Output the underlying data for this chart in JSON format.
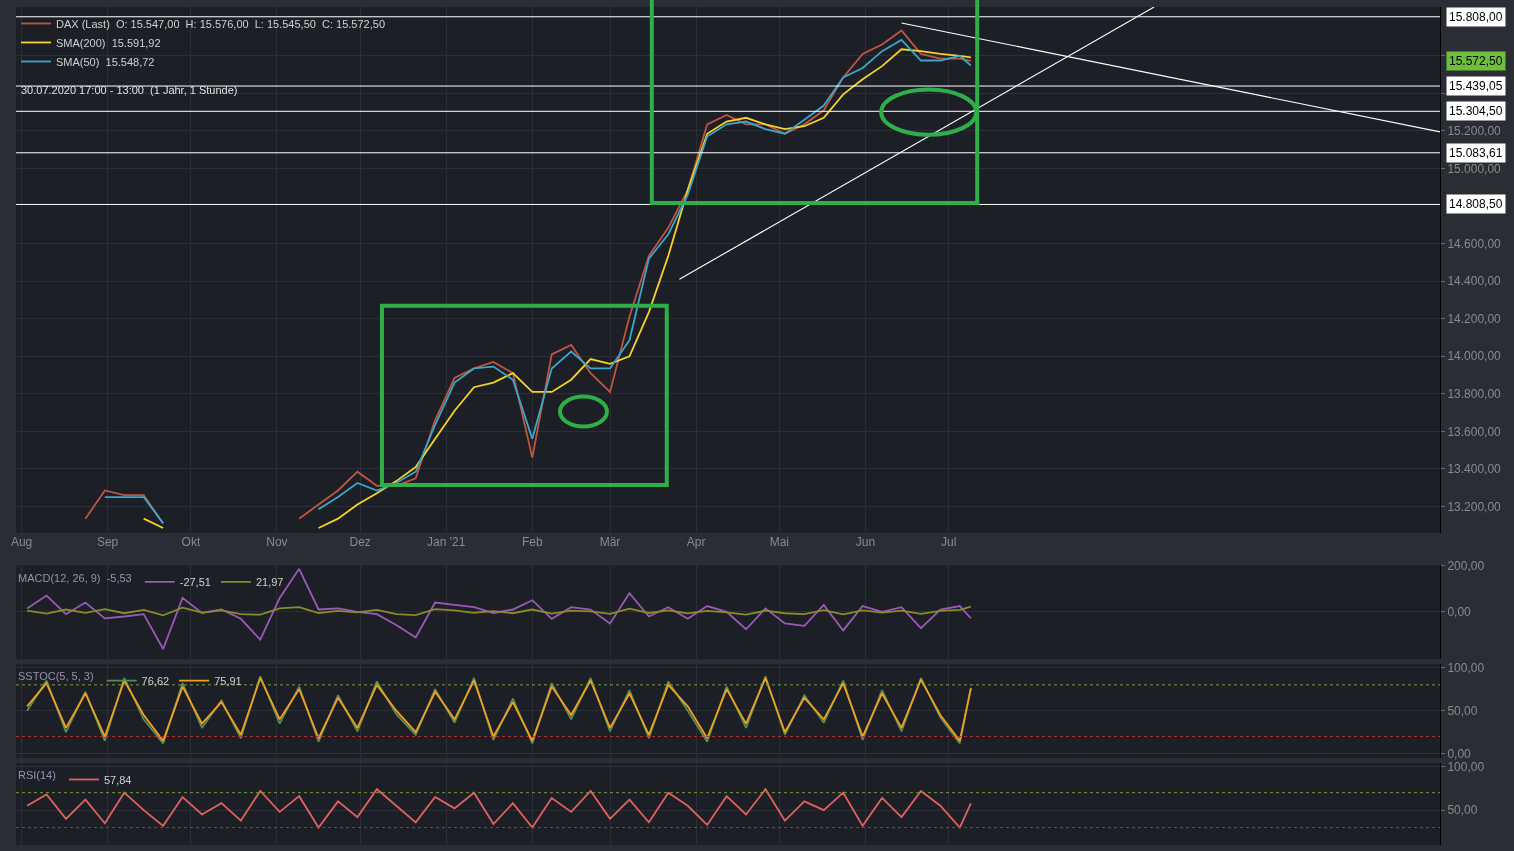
{
  "chart_data": [
    {
      "type": "line",
      "subtitle": "30.07.2020 17:00 - 13:00  (1 Jahr, 1 Stunde)",
      "x": [
        "2020-08-24",
        "2020-08-31",
        "2020-09-07",
        "2020-09-14",
        "2020-09-21",
        "2020-09-28",
        "2020-10-05",
        "2020-10-12",
        "2020-10-19",
        "2020-10-26",
        "2020-11-02",
        "2020-11-09",
        "2020-11-16",
        "2020-11-23",
        "2020-11-30",
        "2020-12-07",
        "2020-12-14",
        "2020-12-21",
        "2020-12-28",
        "2021-01-04",
        "2021-01-11",
        "2021-01-18",
        "2021-01-25",
        "2021-02-01",
        "2021-02-08",
        "2021-02-15",
        "2021-02-22",
        "2021-03-01",
        "2021-03-08",
        "2021-03-15",
        "2021-03-22",
        "2021-03-29",
        "2021-04-05",
        "2021-04-12",
        "2021-04-19",
        "2021-04-26",
        "2021-05-03",
        "2021-05-10",
        "2021-05-17",
        "2021-05-24",
        "2021-05-31",
        "2021-06-07",
        "2021-06-14",
        "2021-06-21",
        "2021-06-28",
        "2021-07-05",
        "2021-07-09"
      ],
      "series": [
        {
          "name": "DAX (Last)  O: 15.547,00  H: 15.576,00  L: 15.545,50  C: 15.572,50",
          "color": "#c0553f",
          "values": [
            13135,
            13285,
            13260,
            13260,
            13110,
            null,
            null,
            null,
            null,
            null,
            null,
            13135,
            13210,
            13285,
            13385,
            13310,
            13310,
            13350,
            13660,
            13885,
            13935,
            13970,
            13910,
            13460,
            14010,
            14060,
            13910,
            13810,
            14210,
            14535,
            14685,
            14885,
            15235,
            15285,
            15235,
            15235,
            15185,
            15235,
            15310,
            15485,
            15610,
            15660,
            15735,
            15610,
            15585,
            15585,
            15572.5
          ]
        },
        {
          "name": "SMA(200)  15.591,92",
          "color": "#f5d327",
          "values": [
            null,
            null,
            null,
            13135,
            13085,
            null,
            null,
            null,
            null,
            null,
            null,
            null,
            13085,
            13135,
            13210,
            13270,
            13335,
            13410,
            13560,
            13710,
            13835,
            13860,
            13910,
            13810,
            13810,
            13875,
            13985,
            13960,
            14000,
            14235,
            14535,
            14885,
            15185,
            15250,
            15270,
            15235,
            15210,
            15225,
            15270,
            15395,
            15475,
            15545,
            15635,
            15625,
            15610,
            15600,
            15591.92
          ]
        },
        {
          "name": "SMA(50)  15.548,72",
          "color": "#3aa6c9",
          "values": [
            null,
            13250,
            13250,
            13250,
            13110,
            null,
            null,
            null,
            null,
            null,
            null,
            null,
            13185,
            13250,
            13325,
            13285,
            13325,
            13385,
            13635,
            13860,
            13935,
            13945,
            13875,
            13560,
            13935,
            14025,
            13935,
            13935,
            14085,
            14520,
            14650,
            14860,
            15170,
            15235,
            15250,
            15210,
            15185,
            15260,
            15335,
            15485,
            15535,
            15625,
            15685,
            15575,
            15575,
            15600,
            15548.72
          ]
        },
        {
          "color": "#ffffff",
          "x": [
            "2021-03-26",
            "2021-09-13"
          ],
          "values": [
            14410,
            15860
          ]
        },
        {
          "color": "#ffffff",
          "x": [
            "2021-06-14",
            "2021-12-25"
          ],
          "values": [
            15775,
            15195
          ]
        }
      ],
      "ref_lines": [
        {
          "axis": "y",
          "value": 15808,
          "label": "15.808,00",
          "color": "#ffffff"
        },
        {
          "axis": "y",
          "value": 15439.05,
          "label": "15.439,05",
          "color": "#ffffff"
        },
        {
          "axis": "y",
          "value": 15304.5,
          "label": "15.304,50",
          "color": "#ffffff"
        },
        {
          "axis": "y",
          "value": 15083.61,
          "label": "15.083,61",
          "color": "#ffffff"
        },
        {
          "axis": "y",
          "value": 14808.5,
          "label": "14.808,50",
          "color": "#ffffff"
        }
      ],
      "annotations": [
        "15.572,50"
      ],
      "xlim": [
        "2020-07-30",
        "2021-12-25"
      ],
      "xticks": [
        {
          "value": "2020-08-01",
          "label": "Aug"
        },
        {
          "value": "2020-09-01",
          "label": "Sep"
        },
        {
          "value": "2020-10-01",
          "label": "Okt"
        },
        {
          "value": "2020-11-01",
          "label": "Nov"
        },
        {
          "value": "2020-12-01",
          "label": "Dez"
        },
        {
          "value": "2021-01-01",
          "label": "Jan '21"
        },
        {
          "value": "2021-02-01",
          "label": "Feb"
        },
        {
          "value": "2021-03-01",
          "label": "Mär"
        },
        {
          "value": "2021-04-01",
          "label": "Apr"
        },
        {
          "value": "2021-05-01",
          "label": "Mai"
        },
        {
          "value": "2021-06-01",
          "label": "Jun"
        },
        {
          "value": "2021-07-01",
          "label": "Jul"
        }
      ],
      "ylim": [
        13060,
        15860
      ],
      "yticks": [
        {
          "value": 13200,
          "label": "13.200,00"
        },
        {
          "value": 13400,
          "label": "13.400,00"
        },
        {
          "value": 13600,
          "label": "13.600,00"
        },
        {
          "value": 13800,
          "label": "13.800,00"
        },
        {
          "value": 14000,
          "label": "14.000,00"
        },
        {
          "value": 14200,
          "label": "14.200,00"
        },
        {
          "value": 14400,
          "label": "14.400,00"
        },
        {
          "value": 14600,
          "label": "14.600,00"
        },
        {
          "value": 15000,
          "label": "15.000,00"
        },
        {
          "value": 15200,
          "label": "15.200,00"
        },
        {
          "value": 15400,
          "label": null
        },
        {
          "value": 15600,
          "label": null
        }
      ],
      "grid": true,
      "legend": "top left"
    },
    {
      "type": "line",
      "legend_title": "MACD(12, 26, 9)  -5,53",
      "x": [
        "2020-08-03",
        "2020-08-10",
        "2020-08-17",
        "2020-08-24",
        "2020-08-31",
        "2020-09-07",
        "2020-09-14",
        "2020-09-21",
        "2020-09-28",
        "2020-10-05",
        "2020-10-12",
        "2020-10-19",
        "2020-10-26",
        "2020-11-02",
        "2020-11-09",
        "2020-11-16",
        "2020-11-23",
        "2020-11-30",
        "2020-12-07",
        "2020-12-14",
        "2020-12-21",
        "2020-12-28",
        "2021-01-04",
        "2021-01-11",
        "2021-01-18",
        "2021-01-25",
        "2021-02-01",
        "2021-02-08",
        "2021-02-15",
        "2021-02-22",
        "2021-03-01",
        "2021-03-08",
        "2021-03-15",
        "2021-03-22",
        "2021-03-29",
        "2021-04-05",
        "2021-04-12",
        "2021-04-19",
        "2021-04-26",
        "2021-05-03",
        "2021-05-10",
        "2021-05-17",
        "2021-05-24",
        "2021-05-31",
        "2021-06-07",
        "2021-06-14",
        "2021-06-21",
        "2021-06-28",
        "2021-07-05",
        "2021-07-09"
      ],
      "series": [
        {
          "name": "-27,51",
          "color": "#9b59b6",
          "values": [
            14,
            70,
            -10,
            40,
            -28,
            -20,
            -10,
            -160,
            60,
            -5,
            10,
            -30,
            -120,
            60,
            185,
            10,
            15,
            0,
            -10,
            -57,
            -110,
            40,
            30,
            20,
            -5,
            10,
            50,
            -30,
            20,
            10,
            -50,
            80,
            -20,
            20,
            -30,
            25,
            0,
            -75,
            15,
            -50,
            -60,
            30,
            -80,
            25,
            0,
            20,
            -70,
            10,
            25,
            -27.51
          ]
        },
        {
          "name": "21,97",
          "color": "#8a8a2a",
          "values": [
            5,
            -8,
            10,
            -4,
            12,
            -6,
            8,
            -15,
            18,
            -3,
            6,
            -10,
            -12,
            15,
            20,
            -5,
            4,
            -2,
            8,
            -10,
            -14,
            12,
            6,
            -4,
            3,
            -6,
            10,
            -8,
            5,
            2,
            -9,
            14,
            -5,
            6,
            -7,
            4,
            -2,
            -12,
            5,
            -6,
            -10,
            7,
            -11,
            6,
            -3,
            5,
            -9,
            4,
            8,
            21.97
          ]
        }
      ],
      "xlim": [
        "2020-07-30",
        "2021-12-25"
      ],
      "xticks": [
        {
          "value": "2020-08-01",
          "label": null
        },
        {
          "value": "2020-09-01",
          "label": null
        },
        {
          "value": "2020-10-01",
          "label": null
        },
        {
          "value": "2020-11-01",
          "label": null
        },
        {
          "value": "2020-12-01",
          "label": null
        },
        {
          "value": "2021-01-01",
          "label": null
        },
        {
          "value": "2021-02-01",
          "label": null
        },
        {
          "value": "2021-03-01",
          "label": null
        },
        {
          "value": "2021-04-01",
          "label": null
        },
        {
          "value": "2021-05-01",
          "label": null
        },
        {
          "value": "2021-06-01",
          "label": null
        },
        {
          "value": "2021-07-01",
          "label": null
        }
      ],
      "ylim": [
        -204,
        200
      ],
      "yticks": [
        {
          "value": 0,
          "label": "0,00"
        },
        {
          "value": 200,
          "label": "200,00"
        }
      ],
      "tick_labels": "y",
      "grid": true,
      "legend": "top left"
    },
    {
      "type": "line",
      "legend_title": "SSTOC(5, 5, 3)",
      "x": [
        "2020-08-03",
        "2020-08-10",
        "2020-08-17",
        "2020-08-24",
        "2020-08-31",
        "2020-09-07",
        "2020-09-14",
        "2020-09-21",
        "2020-09-28",
        "2020-10-05",
        "2020-10-12",
        "2020-10-19",
        "2020-10-26",
        "2020-11-02",
        "2020-11-09",
        "2020-11-16",
        "2020-11-23",
        "2020-11-30",
        "2020-12-07",
        "2020-12-14",
        "2020-12-21",
        "2020-12-28",
        "2021-01-04",
        "2021-01-11",
        "2021-01-18",
        "2021-01-25",
        "2021-02-01",
        "2021-02-08",
        "2021-02-15",
        "2021-02-22",
        "2021-03-01",
        "2021-03-08",
        "2021-03-15",
        "2021-03-22",
        "2021-03-29",
        "2021-04-05",
        "2021-04-12",
        "2021-04-19",
        "2021-04-26",
        "2021-05-03",
        "2021-05-10",
        "2021-05-17",
        "2021-05-24",
        "2021-05-31",
        "2021-06-07",
        "2021-06-14",
        "2021-06-21",
        "2021-06-28",
        "2021-07-05",
        "2021-07-09"
      ],
      "series": [
        {
          "name": "76,62",
          "color": "#5a8a5a",
          "values": [
            50,
            85,
            25,
            72,
            15,
            88,
            40,
            12,
            82,
            30,
            62,
            18,
            90,
            35,
            78,
            14,
            68,
            26,
            84,
            46,
            22,
            75,
            36,
            88,
            16,
            64,
            12,
            82,
            40,
            88,
            26,
            74,
            18,
            84,
            50,
            14,
            78,
            30,
            90,
            22,
            68,
            36,
            85,
            16,
            74,
            26,
            88,
            42,
            12,
            76.62
          ]
        },
        {
          "name": "75,91",
          "color": "#f0a01e",
          "values": [
            55,
            82,
            30,
            70,
            20,
            85,
            45,
            15,
            78,
            35,
            60,
            22,
            88,
            40,
            75,
            18,
            65,
            30,
            80,
            50,
            25,
            72,
            40,
            85,
            20,
            60,
            15,
            78,
            45,
            85,
            30,
            70,
            22,
            80,
            55,
            18,
            75,
            35,
            88,
            25,
            65,
            40,
            82,
            20,
            70,
            30,
            86,
            45,
            15,
            75.91
          ]
        }
      ],
      "ref_lines": [
        {
          "axis": "y",
          "value": 80,
          "color": "#7a9a3a",
          "line_style": "dotted"
        },
        {
          "axis": "y",
          "value": 20,
          "color": "#b03030",
          "line_style": "dotted"
        }
      ],
      "xlim": [
        "2020-07-30",
        "2021-12-25"
      ],
      "xticks": [
        {
          "value": "2020-08-01",
          "label": null
        },
        {
          "value": "2020-09-01",
          "label": null
        },
        {
          "value": "2020-10-01",
          "label": null
        },
        {
          "value": "2020-11-01",
          "label": null
        },
        {
          "value": "2020-12-01",
          "label": null
        },
        {
          "value": "2021-01-01",
          "label": null
        },
        {
          "value": "2021-02-01",
          "label": null
        },
        {
          "value": "2021-03-01",
          "label": null
        },
        {
          "value": "2021-04-01",
          "label": null
        },
        {
          "value": "2021-05-01",
          "label": null
        },
        {
          "value": "2021-06-01",
          "label": null
        },
        {
          "value": "2021-07-01",
          "label": null
        }
      ],
      "ylim": [
        -5,
        104
      ],
      "yticks": [
        {
          "value": 0,
          "label": "0,00"
        },
        {
          "value": 50,
          "label": "50,00"
        },
        {
          "value": 100,
          "label": "100,00"
        }
      ],
      "tick_labels": "y",
      "grid": true,
      "legend": "top left"
    },
    {
      "type": "line",
      "legend_title": "RSI(14)",
      "x": [
        "2020-08-03",
        "2020-08-10",
        "2020-08-17",
        "2020-08-24",
        "2020-08-31",
        "2020-09-07",
        "2020-09-14",
        "2020-09-21",
        "2020-09-28",
        "2020-10-05",
        "2020-10-12",
        "2020-10-19",
        "2020-10-26",
        "2020-11-02",
        "2020-11-09",
        "2020-11-16",
        "2020-11-23",
        "2020-11-30",
        "2020-12-07",
        "2020-12-14",
        "2020-12-21",
        "2020-12-28",
        "2021-01-04",
        "2021-01-11",
        "2021-01-18",
        "2021-01-25",
        "2021-02-01",
        "2021-02-08",
        "2021-02-15",
        "2021-02-22",
        "2021-03-01",
        "2021-03-08",
        "2021-03-15",
        "2021-03-22",
        "2021-03-29",
        "2021-04-05",
        "2021-04-12",
        "2021-04-19",
        "2021-04-26",
        "2021-05-03",
        "2021-05-10",
        "2021-05-17",
        "2021-05-24",
        "2021-05-31",
        "2021-06-07",
        "2021-06-14",
        "2021-06-21",
        "2021-06-28",
        "2021-07-05",
        "2021-07-09"
      ],
      "series": [
        {
          "name": "57,84",
          "color": "#e06060",
          "values": [
            55,
            68,
            40,
            62,
            35,
            70,
            50,
            32,
            65,
            45,
            58,
            38,
            72,
            48,
            66,
            30,
            60,
            42,
            74,
            55,
            36,
            65,
            52,
            70,
            34,
            58,
            30,
            64,
            48,
            72,
            40,
            62,
            36,
            70,
            55,
            33,
            66,
            45,
            74,
            38,
            60,
            50,
            70,
            32,
            64,
            42,
            72,
            55,
            30,
            57.84
          ]
        }
      ],
      "ref_lines": [
        {
          "axis": "y",
          "value": 70,
          "color": "#7a9a3a",
          "line_style": "dotted"
        },
        {
          "axis": "y",
          "value": 30,
          "color": "#b03030",
          "line_style": "dotted"
        }
      ],
      "xlim": [
        "2020-07-30",
        "2021-12-25"
      ],
      "xticks": [
        {
          "value": "2020-08-01",
          "label": null
        },
        {
          "value": "2020-09-01",
          "label": null
        },
        {
          "value": "2020-10-01",
          "label": null
        },
        {
          "value": "2020-11-01",
          "label": null
        },
        {
          "value": "2020-12-01",
          "label": null
        },
        {
          "value": "2021-01-01",
          "label": null
        },
        {
          "value": "2021-02-01",
          "label": null
        },
        {
          "value": "2021-03-01",
          "label": null
        },
        {
          "value": "2021-04-01",
          "label": null
        },
        {
          "value": "2021-05-01",
          "label": null
        },
        {
          "value": "2021-06-01",
          "label": null
        },
        {
          "value": "2021-07-01",
          "label": null
        }
      ],
      "ylim": [
        10,
        104
      ],
      "yticks": [
        {
          "value": 50,
          "label": "50,00"
        },
        {
          "value": 100,
          "label": "100,00"
        }
      ],
      "tick_labels": "y",
      "grid": true,
      "legend": "top left"
    }
  ]
}
